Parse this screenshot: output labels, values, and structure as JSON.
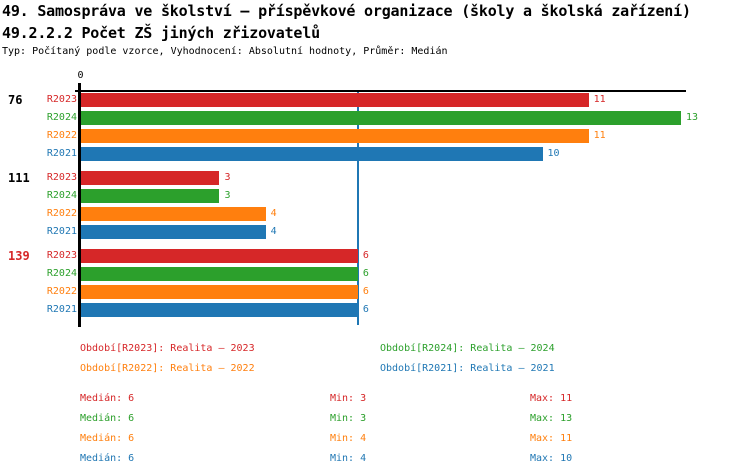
{
  "header": {
    "title": "49. Samospráva ve školství – příspěvkové organizace (školy a školská zařízení)",
    "subtitle": "49.2.2.2 Počet ZŠ jiných zřizovatelů",
    "meta": "Typ: Počítaný podle vzorce, Vyhodnocení: Absolutní hodnoty, Průměr: Medián"
  },
  "chart_data": {
    "type": "bar",
    "orientation": "horizontal",
    "x_tick_label": "0",
    "xlim": [
      0,
      13.2
    ],
    "grid": false,
    "median_line_value": 6,
    "categories": [
      "76",
      "111",
      "139"
    ],
    "category_colors": [
      "#000000",
      "#000000",
      "#d62728"
    ],
    "series": [
      {
        "name": "R2023",
        "color": "#d62728",
        "values": [
          11,
          3,
          6
        ],
        "median": 6,
        "min": 3,
        "max": 11
      },
      {
        "name": "R2024",
        "color": "#2ca02c",
        "values": [
          13,
          3,
          6
        ],
        "median": 6,
        "min": 3,
        "max": 13
      },
      {
        "name": "R2022",
        "color": "#ff7f0e",
        "values": [
          11,
          4,
          6
        ],
        "median": 6,
        "min": 4,
        "max": 11
      },
      {
        "name": "R2021",
        "color": "#1f77b4",
        "values": [
          10,
          4,
          6
        ],
        "median": 6,
        "min": 4,
        "max": 10
      }
    ]
  },
  "legend": {
    "items": [
      {
        "label": "Období[R2023]: Realita – 2023",
        "color": "#d62728"
      },
      {
        "label": "Období[R2024]: Realita – 2024",
        "color": "#2ca02c"
      },
      {
        "label": "Období[R2022]: Realita – 2022",
        "color": "#ff7f0e"
      },
      {
        "label": "Období[R2021]: Realita – 2021",
        "color": "#1f77b4"
      }
    ]
  },
  "stats": {
    "rows": [
      {
        "median": "Medián: 6",
        "min": "Min: 3",
        "max": "Max: 11",
        "color": "#d62728"
      },
      {
        "median": "Medián: 6",
        "min": "Min: 3",
        "max": "Max: 13",
        "color": "#2ca02c"
      },
      {
        "median": "Medián: 6",
        "min": "Min: 4",
        "max": "Max: 11",
        "color": "#ff7f0e"
      },
      {
        "median": "Medián: 6",
        "min": "Min: 4",
        "max": "Max: 10",
        "color": "#1f77b4"
      }
    ]
  },
  "colors": {
    "axis": "#000000",
    "median_line": "#1f77b4",
    "background": "#ffffff"
  }
}
